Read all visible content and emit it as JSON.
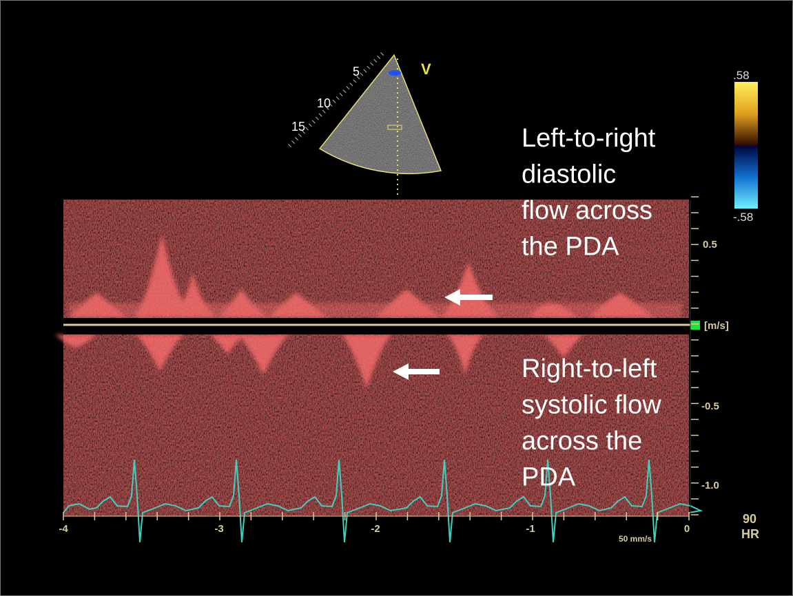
{
  "sector": {
    "depth_labels": [
      "5",
      "10",
      "15"
    ],
    "view_label": "V"
  },
  "color_bar": {
    "top_label": ".58",
    "bottom_label": "-.58"
  },
  "velocity_scale": {
    "labels": [
      "0.5",
      "[m/s]",
      "-0.5",
      "-1.0"
    ]
  },
  "time_axis": {
    "labels": [
      "-4",
      "-3",
      "-2",
      "-1",
      "0"
    ],
    "sweep": "50 mm/s"
  },
  "heart_rate": {
    "value": "90",
    "label": "HR"
  },
  "annotations": [
    {
      "lines": [
        "Left-to-right",
        "diastolic",
        "flow across",
        "the PDA"
      ]
    },
    {
      "lines": [
        "Right-to-left",
        "systolic flow",
        "across the",
        "PDA"
      ]
    }
  ]
}
